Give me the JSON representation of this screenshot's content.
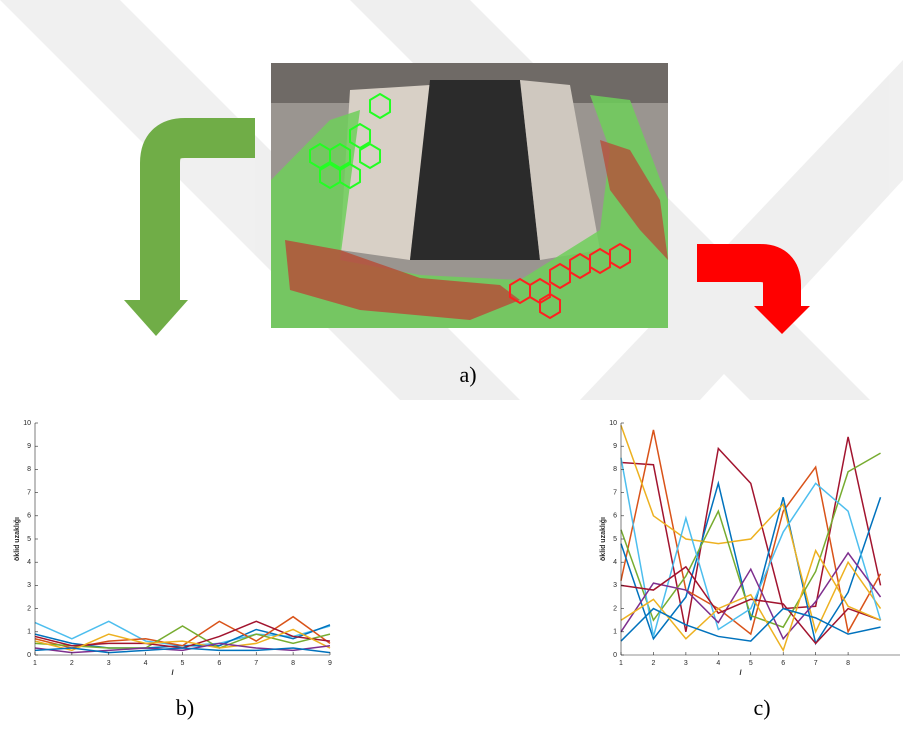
{
  "figure": {
    "caption": "a)"
  },
  "chart_data": [
    {
      "type": "line",
      "caption": "b)",
      "ylabel": "öklid uzaklığı",
      "xlabel": "l",
      "x": [
        1,
        2,
        3,
        4,
        5,
        6,
        7,
        8,
        9
      ],
      "xlim": [
        1,
        9
      ],
      "xticks": [
        1,
        2,
        3,
        4,
        5,
        6,
        7,
        8,
        9
      ],
      "ylim": [
        0,
        10
      ],
      "yticks": [
        0,
        1,
        2,
        3,
        4,
        5,
        6,
        7,
        8,
        9,
        10
      ],
      "series": [
        {
          "color": "#4DBEEE",
          "values": [
            1.4,
            0.7,
            1.45,
            0.6,
            0.4,
            0.5,
            0.9,
            0.8,
            1.25
          ]
        },
        {
          "color": "#0072BD",
          "values": [
            0.9,
            0.5,
            0.3,
            0.3,
            0.4,
            0.4,
            1.1,
            0.7,
            1.3
          ]
        },
        {
          "color": "#D95319",
          "values": [
            0.7,
            0.3,
            0.6,
            0.7,
            0.4,
            1.45,
            0.6,
            1.65,
            0.5
          ]
        },
        {
          "color": "#77AC30",
          "values": [
            0.5,
            0.4,
            0.3,
            0.3,
            1.25,
            0.3,
            0.9,
            0.5,
            0.9
          ]
        },
        {
          "color": "#A2142F",
          "values": [
            0.8,
            0.4,
            0.5,
            0.5,
            0.3,
            0.8,
            1.45,
            0.8,
            0.6
          ]
        },
        {
          "color": "#EDB120",
          "values": [
            0.6,
            0.2,
            0.9,
            0.5,
            0.6,
            0.3,
            0.5,
            1.1,
            0.3
          ]
        },
        {
          "color": "#7E2F8E",
          "values": [
            0.3,
            0.1,
            0.2,
            0.3,
            0.2,
            0.5,
            0.3,
            0.2,
            0.4
          ]
        },
        {
          "color": "#0072BD",
          "values": [
            0.2,
            0.3,
            0.1,
            0.2,
            0.3,
            0.2,
            0.2,
            0.3,
            0.1
          ]
        }
      ]
    },
    {
      "type": "line",
      "caption": "c)",
      "ylabel": "öklid uzaklığı",
      "xlabel": "l",
      "x": [
        1,
        2,
        3,
        4,
        5,
        6,
        7,
        8,
        9
      ],
      "xlim": [
        1,
        9.6
      ],
      "xticks": [
        1,
        2,
        3,
        4,
        5,
        6,
        7,
        8
      ],
      "ylim": [
        0,
        10
      ],
      "yticks": [
        0,
        1,
        2,
        3,
        4,
        5,
        6,
        7,
        8,
        9,
        10
      ],
      "series": [
        {
          "color": "#A2142F",
          "values": [
            8.3,
            8.2,
            1.0,
            8.9,
            7.4,
            2.0,
            2.1,
            9.4,
            3.0
          ]
        },
        {
          "color": "#D95319",
          "values": [
            3.2,
            9.7,
            2.8,
            2.0,
            0.9,
            6.2,
            8.1,
            1.0,
            3.5
          ]
        },
        {
          "color": "#0072BD",
          "values": [
            4.8,
            0.7,
            2.5,
            7.4,
            1.5,
            6.8,
            0.5,
            2.7,
            6.8
          ]
        },
        {
          "color": "#EDB120",
          "values": [
            9.9,
            6.0,
            5.0,
            4.8,
            5.0,
            6.5,
            1.0,
            4.0,
            2.0
          ]
        },
        {
          "color": "#77AC30",
          "values": [
            5.4,
            1.5,
            3.4,
            6.2,
            1.7,
            1.2,
            3.6,
            7.9,
            8.7
          ]
        },
        {
          "color": "#4DBEEE",
          "values": [
            8.5,
            0.8,
            5.9,
            1.1,
            2.0,
            5.3,
            7.4,
            6.2,
            1.5
          ]
        },
        {
          "color": "#7E2F8E",
          "values": [
            1.0,
            3.1,
            2.8,
            1.4,
            3.7,
            0.7,
            2.3,
            4.4,
            2.5
          ]
        },
        {
          "color": "#A2142F",
          "values": [
            3.0,
            2.8,
            3.8,
            1.8,
            2.4,
            2.2,
            0.5,
            2.0,
            1.5
          ]
        },
        {
          "color": "#EDB120",
          "values": [
            1.5,
            2.4,
            0.7,
            2.0,
            2.6,
            0.2,
            4.5,
            2.1,
            1.5
          ]
        },
        {
          "color": "#0072BD",
          "values": [
            0.6,
            2.0,
            1.3,
            0.8,
            0.6,
            2.0,
            1.6,
            0.9,
            1.2
          ]
        }
      ]
    }
  ]
}
